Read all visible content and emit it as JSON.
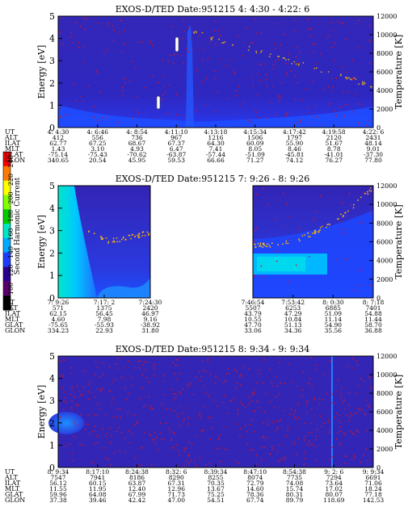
{
  "colorbar": {
    "title": "Second Harmonic Current",
    "ticks": [
      "240",
      "220",
      "200",
      "180",
      "160",
      "140",
      "120",
      "100",
      "80"
    ],
    "colors": [
      "#ff0000",
      "#ff7a00",
      "#ffff00",
      "#7fff00",
      "#00cc00",
      "#00e6c8",
      "#00aaff",
      "#1e3cff",
      "#2a0090",
      "#5a006e",
      "#000000"
    ]
  },
  "chart_data": [
    {
      "type": "heatmap",
      "title": "EXOS-D/TED   Date:951215  4: 4:30 - 4:22: 6",
      "ylabel": "Energy [eV]",
      "y2label": "Temperature [K]",
      "ylim": [
        0,
        5
      ],
      "y_ticks": [
        "0",
        "1",
        "2",
        "3",
        "4",
        "5"
      ],
      "y2lim": [
        0,
        12000
      ],
      "y2_ticks": [
        "0",
        "2000",
        "4000",
        "6000",
        "8000",
        "10000",
        "12000"
      ],
      "data_gap": null,
      "rows": [
        {
          "label": "UT",
          "values": [
            "4: 4:30",
            "4: 6:46",
            "4: 8:54",
            "4:11:10",
            "4:13:18",
            "4:15:34",
            "4:17:42",
            "4:19:58",
            "4:22: 6"
          ]
        },
        {
          "label": "ALT",
          "values": [
            "412",
            "556",
            "736",
            "967",
            "1216",
            "1506",
            "1797",
            "2120",
            "2431"
          ]
        },
        {
          "label": "ILAT",
          "values": [
            "62.77",
            "67.25",
            "68.67",
            "67.37",
            "64.30",
            "60.09",
            "55.90",
            "51.67",
            "48.14"
          ]
        },
        {
          "label": "MLT",
          "values": [
            "1.43",
            "3.10",
            "4.93",
            "6.47",
            "7.41",
            "8.05",
            "8.46",
            "8.78",
            "9.01"
          ]
        },
        {
          "label": "GLAT",
          "values": [
            "-75.14",
            "-75.43",
            "-70.62",
            "-63.87",
            "-57.44",
            "-51.09",
            "-45.81",
            "-41.01",
            "-37.30"
          ]
        },
        {
          "label": "GLON",
          "values": [
            "340.65",
            "20.54",
            "45.95",
            "59.53",
            "66.66",
            "71.27",
            "74.12",
            "76.27",
            "77.80"
          ]
        }
      ]
    },
    {
      "type": "heatmap",
      "title": "EXOS-D/TED   Date:951215  7: 9:26 - 8: 9:26",
      "ylabel": "Energy [eV]",
      "y2label": "Temperature [K]",
      "ylim": [
        0,
        5
      ],
      "y_ticks": [
        "0",
        "1",
        "2",
        "3",
        "4",
        "5"
      ],
      "y2lim": [
        0,
        12000
      ],
      "y2_ticks": [
        "0",
        "2000",
        "4000",
        "6000",
        "8000",
        "10000",
        "12000"
      ],
      "data_gap": {
        "from": "7:24:30",
        "to": "7:46:54"
      },
      "rows": [
        {
          "label": "UT",
          "values": [
            "7: 9:26",
            "7:17: 2",
            "7:24:30",
            "7:46:54",
            "7:53:42",
            "8: 0:30",
            "8: 7:18"
          ]
        },
        {
          "label": "ALT",
          "values": [
            "571",
            "1375",
            "2420",
            "5507",
            "6253",
            "6885",
            "7401"
          ]
        },
        {
          "label": "ILAT",
          "values": [
            "62.15",
            "56.45",
            "46.97",
            "43.79",
            "47.29",
            "51.09",
            "54.88"
          ]
        },
        {
          "label": "MLT",
          "values": [
            "4.60",
            "7.98",
            "9.16",
            "10.55",
            "10.84",
            "11.14",
            "11.44"
          ]
        },
        {
          "label": "GLAT",
          "values": [
            "-75.65",
            "-55.93",
            "-38.92",
            "47.70",
            "51.13",
            "54.90",
            "58.70"
          ]
        },
        {
          "label": "GLON",
          "values": [
            "334.23",
            "22.93",
            "31.80",
            "33.06",
            "34.36",
            "35.56",
            "36.88"
          ]
        }
      ]
    },
    {
      "type": "heatmap",
      "title": "EXOS-D/TED   Date:951215  8: 9:34 - 9: 9:34",
      "ylabel": "Energy [eV]",
      "y2label": "Temperature [K]",
      "ylim": [
        0,
        5
      ],
      "y_ticks": [
        "0",
        "1",
        "2",
        "3",
        "4",
        "5"
      ],
      "y2lim": [
        0,
        12000
      ],
      "y2_ticks": [
        "0",
        "2000",
        "4000",
        "6000",
        "8000",
        "10000",
        "12000"
      ],
      "data_gap": null,
      "rows": [
        {
          "label": "UT",
          "values": [
            "8: 9:34",
            "8:17:10",
            "8:24:38",
            "8:32: 6",
            "8:39:34",
            "8:47:10",
            "8:54:38",
            "9: 2: 6",
            "9: 9:34"
          ]
        },
        {
          "label": "ALT",
          "values": [
            "7547",
            "7941",
            "8186",
            "8290",
            "8255",
            "8074",
            "7735",
            "7294",
            "6691"
          ]
        },
        {
          "label": "ILAT",
          "values": [
            "56.12",
            "60.15",
            "63.87",
            "67.31",
            "70.35",
            "72.79",
            "74.08",
            "73.64",
            "71.06"
          ]
        },
        {
          "label": "MLT",
          "values": [
            "11.55",
            "11.95",
            "12.40",
            "12.96",
            "13.67",
            "14.60",
            "15.74",
            "17.02",
            "18.24"
          ]
        },
        {
          "label": "GLAT",
          "values": [
            "59.96",
            "64.08",
            "67.99",
            "71.73",
            "75.25",
            "78.36",
            "80.31",
            "80.07",
            "77.18"
          ]
        },
        {
          "label": "GLON",
          "values": [
            "37.38",
            "39.46",
            "42.42",
            "47.00",
            "54.51",
            "67.74",
            "89.79",
            "118.69",
            "142.53"
          ]
        }
      ]
    }
  ]
}
